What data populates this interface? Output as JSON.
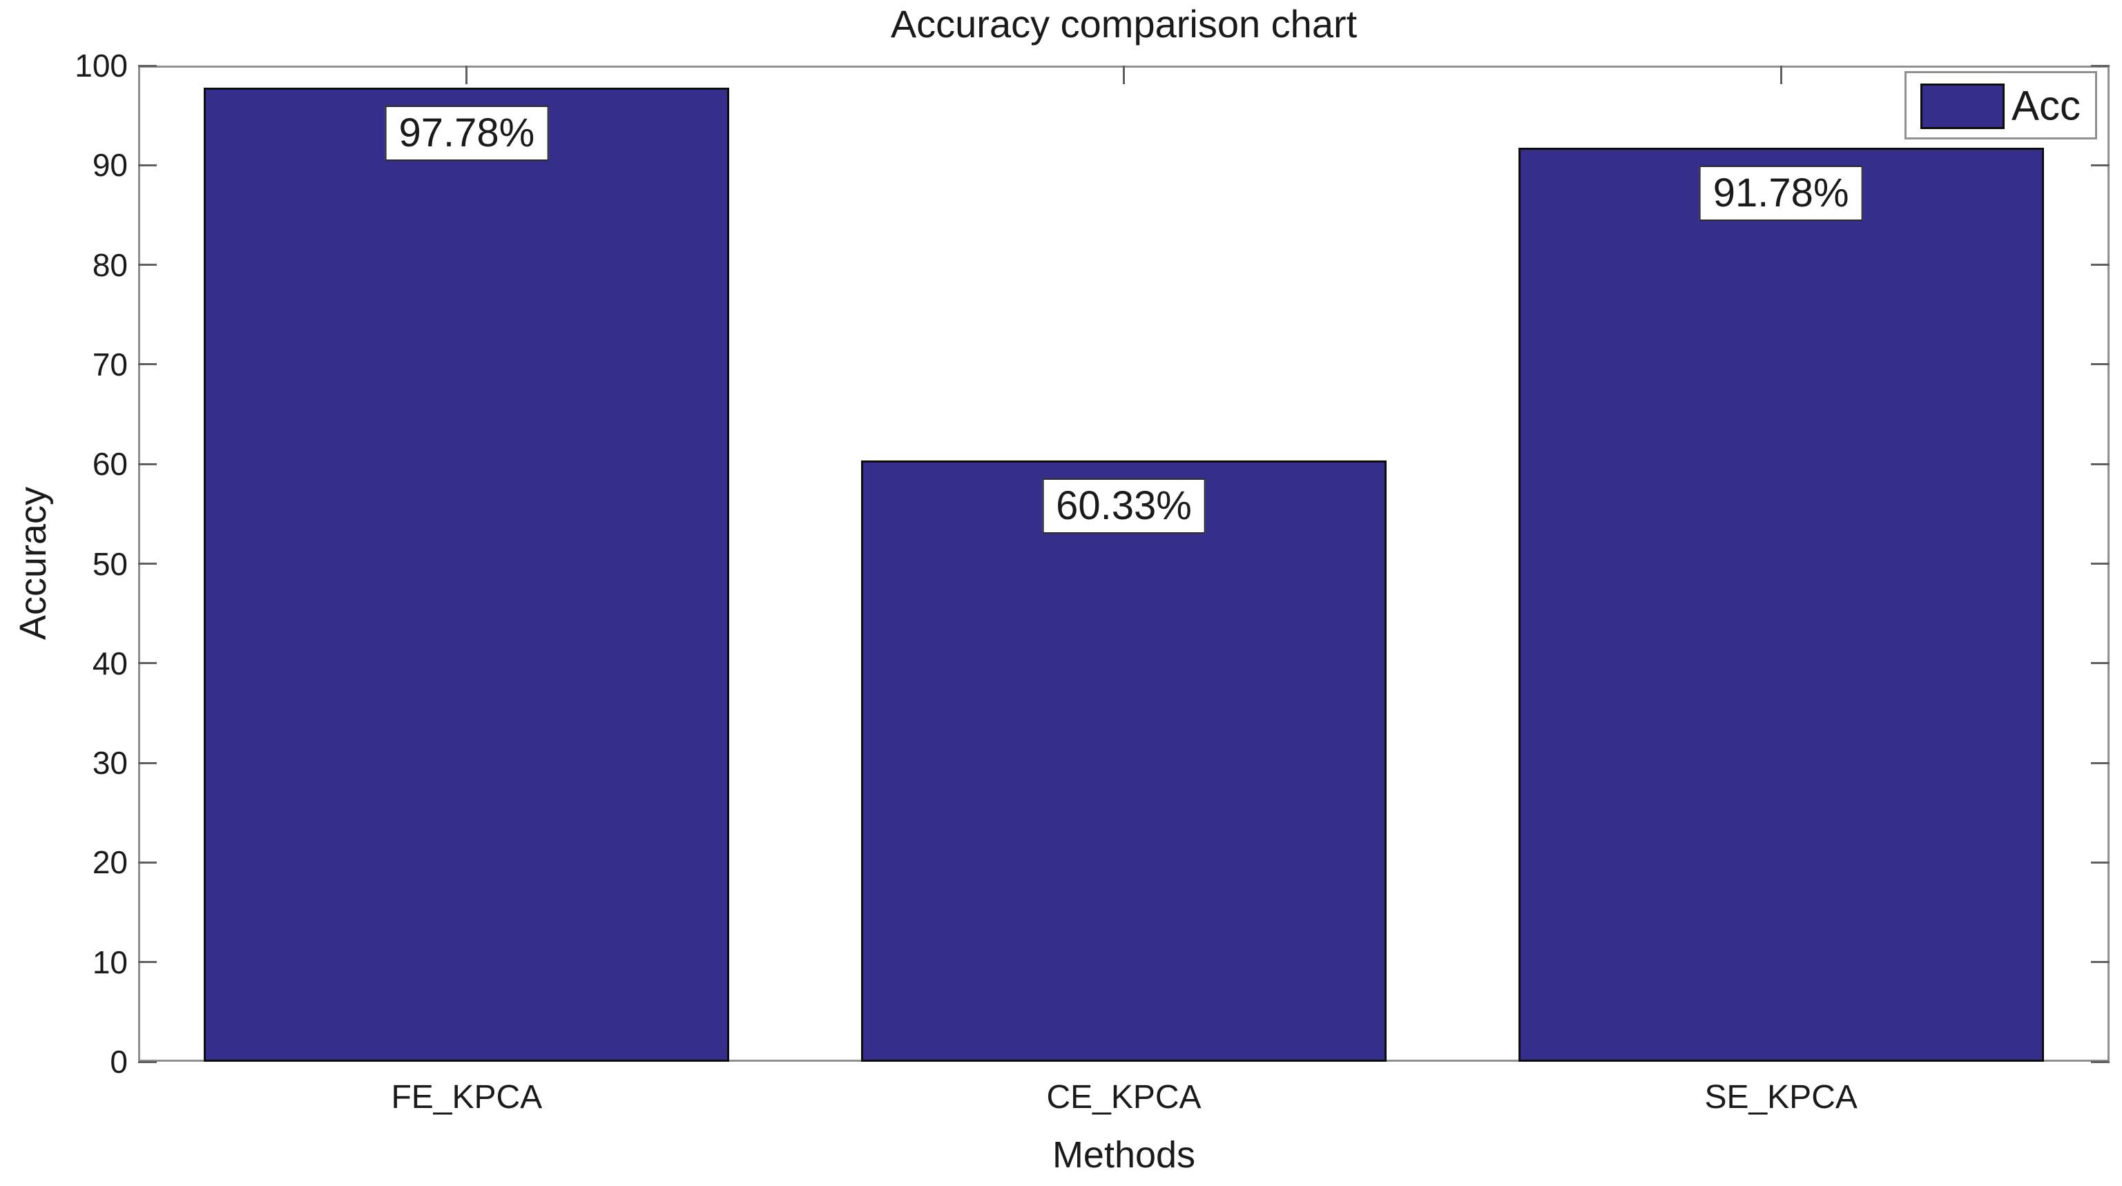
{
  "chart_data": {
    "type": "bar",
    "title": "Accuracy comparison chart",
    "xlabel": "Methods",
    "ylabel": "Accuracy",
    "categories": [
      "FE_KPCA",
      "CE_KPCA",
      "SE_KPCA"
    ],
    "values": [
      97.78,
      60.33,
      91.78
    ],
    "bar_labels": [
      "97.78%",
      "60.33%",
      "91.78%"
    ],
    "ylim": [
      0,
      100
    ],
    "yticks": [
      0,
      10,
      20,
      30,
      40,
      50,
      60,
      70,
      80,
      90,
      100
    ],
    "grid": false,
    "bar_width_fraction": 0.8,
    "legend": {
      "position": "top-right",
      "entries": [
        {
          "label": "Acc",
          "swatch_color": "#352E8A"
        }
      ]
    },
    "colors": {
      "bar_fill": "#352E8A",
      "bar_edge": "#0d0d0d",
      "axis": "#8f8f8f",
      "text": "#1a1a1a",
      "background": "#ffffff"
    }
  }
}
